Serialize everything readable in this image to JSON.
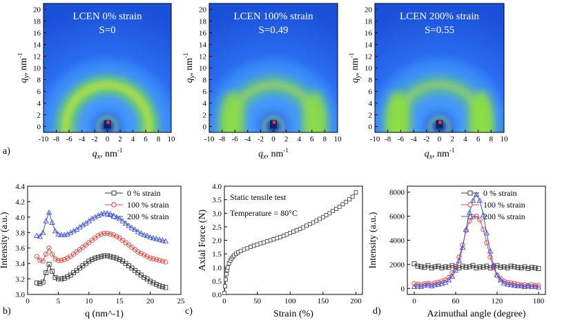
{
  "colors": {
    "black": "#333333",
    "red": "#e8413a",
    "blue": "#3a50e0"
  },
  "chart_data": [
    {
      "type": "heatmap",
      "panel": "a)",
      "title": "LCEN 0% strain",
      "annotation": "S=0",
      "xlabel": "q_x, nm^-1",
      "ylabel": "q_y, nm^-1",
      "xlim": [
        -10,
        10
      ],
      "ylim": [
        -1,
        21
      ],
      "xticks": [
        "-10",
        "-8",
        "-6",
        "-4",
        "-2",
        "0",
        "2",
        "4",
        "6",
        "8",
        "10"
      ],
      "yticks": [
        "0",
        "2",
        "4",
        "6",
        "8",
        "10",
        "12",
        "14",
        "16",
        "18",
        "20"
      ],
      "ring_radius": 6.5,
      "anisotropy": 0
    },
    {
      "type": "heatmap",
      "panel": "a)",
      "title": "LCEN 100% strain",
      "annotation": "S=0.49",
      "xlabel": "q_x, nm^-1",
      "ylabel": "q_y, nm^-1",
      "xlim": [
        -10,
        10
      ],
      "ylim": [
        -1,
        21
      ],
      "xticks": [
        "-10",
        "-8",
        "-6",
        "-4",
        "-2",
        "0",
        "2",
        "4",
        "6",
        "8",
        "10"
      ],
      "yticks": [
        "0",
        "2",
        "4",
        "6",
        "8",
        "10",
        "12",
        "14",
        "16",
        "18",
        "20"
      ],
      "ring_radius": 6.5,
      "anisotropy": 0.49
    },
    {
      "type": "heatmap",
      "panel": "a)",
      "title": "LCEN 200% strain",
      "annotation": "S=0.55",
      "xlabel": "q_x, nm^-1",
      "ylabel": "q_y, nm^-1",
      "xlim": [
        -10,
        10
      ],
      "ylim": [
        -1,
        21
      ],
      "xticks": [
        "-10",
        "-8",
        "-6",
        "-4",
        "-2",
        "0",
        "2",
        "4",
        "6",
        "8",
        "10"
      ],
      "yticks": [
        "0",
        "2",
        "4",
        "6",
        "8",
        "10",
        "12",
        "14",
        "16",
        "18",
        "20"
      ],
      "ring_radius": 6.5,
      "anisotropy": 0.55
    },
    {
      "type": "line",
      "panel": "b)",
      "xlabel": "q (nm^-1)",
      "ylabel": "Intensity (a.u.)",
      "xlim": [
        0,
        25
      ],
      "ylim": [
        3.0,
        4.4
      ],
      "xticks": [
        "0",
        "5",
        "10",
        "15",
        "20",
        "25"
      ],
      "yticks": [
        "3.0",
        "3.2",
        "3.4",
        "3.6",
        "3.8",
        "4.0",
        "4.2",
        "4.4"
      ],
      "x": [
        1.5,
        2.0,
        2.5,
        3.0,
        3.5,
        4.0,
        4.5,
        5.0,
        5.5,
        6.0,
        6.5,
        7.0,
        7.5,
        8.0,
        8.5,
        9.0,
        9.5,
        10.0,
        10.5,
        11.0,
        11.5,
        12.0,
        12.5,
        13.0,
        13.5,
        14.0,
        14.5,
        15.0,
        15.5,
        16.0,
        16.5,
        17.0,
        17.5,
        18.0,
        18.5,
        19.0,
        19.5,
        20.0,
        20.5,
        21.0,
        21.5,
        22.0,
        22.5
      ],
      "series": [
        {
          "name": "0 % strain",
          "color": "black",
          "values": [
            3.15,
            3.14,
            3.16,
            3.28,
            3.39,
            3.3,
            3.22,
            3.2,
            3.2,
            3.21,
            3.23,
            3.25,
            3.28,
            3.31,
            3.34,
            3.37,
            3.4,
            3.43,
            3.45,
            3.47,
            3.48,
            3.49,
            3.5,
            3.5,
            3.49,
            3.48,
            3.47,
            3.45,
            3.43,
            3.4,
            3.37,
            3.34,
            3.31,
            3.28,
            3.25,
            3.22,
            3.2,
            3.17,
            3.15,
            3.13,
            3.11,
            3.1,
            3.09
          ]
        },
        {
          "name": "100 % strain",
          "color": "red",
          "values": [
            3.49,
            3.44,
            3.43,
            3.52,
            3.6,
            3.52,
            3.46,
            3.44,
            3.44,
            3.45,
            3.47,
            3.49,
            3.52,
            3.55,
            3.58,
            3.61,
            3.64,
            3.67,
            3.7,
            3.73,
            3.76,
            3.78,
            3.79,
            3.79,
            3.78,
            3.77,
            3.75,
            3.73,
            3.7,
            3.67,
            3.64,
            3.61,
            3.58,
            3.55,
            3.53,
            3.51,
            3.49,
            3.47,
            3.46,
            3.45,
            3.44,
            3.43,
            3.42
          ]
        },
        {
          "name": "200 % strain",
          "color": "blue",
          "values": [
            3.76,
            3.75,
            3.8,
            3.95,
            4.06,
            3.93,
            3.82,
            3.78,
            3.77,
            3.77,
            3.78,
            3.8,
            3.82,
            3.84,
            3.87,
            3.9,
            3.92,
            3.95,
            3.98,
            4.0,
            4.02,
            4.04,
            4.05,
            4.05,
            4.04,
            4.02,
            4.0,
            3.98,
            3.95,
            3.92,
            3.89,
            3.86,
            3.84,
            3.81,
            3.79,
            3.77,
            3.76,
            3.74,
            3.73,
            3.72,
            3.71,
            3.7,
            3.69
          ]
        }
      ],
      "legend": "top-right"
    },
    {
      "type": "line",
      "panel": "c)",
      "xlabel": "Strain (%)",
      "ylabel": "Axial Force (N)",
      "xlim": [
        0,
        210
      ],
      "ylim": [
        0,
        4.0
      ],
      "xticks": [
        "0",
        "50",
        "100",
        "150",
        "200"
      ],
      "yticks": [
        "0.0",
        "0.5",
        "1.0",
        "1.5",
        "2.0",
        "2.5",
        "3.0",
        "3.5",
        "4.0"
      ],
      "annotations": [
        "Static tensile test",
        "Temperature = 80°C"
      ],
      "series": [
        {
          "name": "Static tensile test",
          "color": "black",
          "x": [
            0,
            1,
            2,
            3,
            4,
            5,
            7,
            9,
            11,
            13,
            15,
            18,
            21,
            25,
            30,
            35,
            40,
            45,
            50,
            55,
            60,
            65,
            70,
            75,
            80,
            85,
            90,
            95,
            100,
            105,
            110,
            115,
            120,
            125,
            130,
            135,
            140,
            145,
            150,
            155,
            160,
            165,
            170,
            175,
            180,
            185,
            190,
            195,
            200
          ],
          "values": [
            0.05,
            0.3,
            0.55,
            0.75,
            0.9,
            1.0,
            1.15,
            1.25,
            1.33,
            1.39,
            1.44,
            1.5,
            1.55,
            1.6,
            1.66,
            1.71,
            1.76,
            1.8,
            1.84,
            1.88,
            1.92,
            1.96,
            2.0,
            2.04,
            2.08,
            2.12,
            2.17,
            2.22,
            2.27,
            2.32,
            2.37,
            2.42,
            2.48,
            2.54,
            2.6,
            2.66,
            2.72,
            2.79,
            2.86,
            2.93,
            3.0,
            3.08,
            3.16,
            3.24,
            3.33,
            3.42,
            3.51,
            3.61,
            3.77
          ]
        }
      ]
    },
    {
      "type": "scatter",
      "panel": "d)",
      "xlabel": "Azimuthal angle (degree)",
      "ylabel": "Intensity (a.u.)",
      "xlim": [
        -10,
        190
      ],
      "ylim": [
        -500,
        8500
      ],
      "xticks": [
        "0",
        "60",
        "120",
        "180"
      ],
      "yticks": [
        "0",
        "2000",
        "4000",
        "6000",
        "8000"
      ],
      "x": [
        0,
        5,
        10,
        15,
        20,
        25,
        30,
        35,
        40,
        45,
        50,
        55,
        60,
        65,
        70,
        75,
        80,
        85,
        90,
        95,
        100,
        105,
        110,
        115,
        120,
        125,
        130,
        135,
        140,
        145,
        150,
        155,
        160,
        165,
        170,
        175,
        180
      ],
      "series": [
        {
          "name": "0 % strain",
          "color": "black",
          "values": [
            2050,
            1850,
            1800,
            1750,
            1900,
            1700,
            1800,
            1850,
            1700,
            1800,
            1750,
            1900,
            1800,
            1700,
            1850,
            1750,
            1800,
            1900,
            1700,
            1800,
            1750,
            1850,
            1700,
            1800,
            1900,
            1750,
            1800,
            1700,
            1850,
            1800,
            1750,
            1700,
            1800,
            1650,
            1750,
            1700,
            1650
          ]
        },
        {
          "name": "100 % strain",
          "color": "red",
          "values": [
            400,
            350,
            300,
            380,
            420,
            350,
            450,
            500,
            600,
            700,
            900,
            1300,
            1800,
            2600,
            3600,
            4800,
            5600,
            5950,
            6000,
            5700,
            4900,
            3800,
            2600,
            1700,
            1100,
            800,
            600,
            500,
            450,
            400,
            350,
            300,
            300,
            250,
            300,
            250,
            250
          ]
        },
        {
          "name": "200 % strain",
          "color": "blue",
          "values": [
            150,
            200,
            150,
            250,
            300,
            200,
            300,
            350,
            400,
            500,
            700,
            1000,
            1500,
            2300,
            3400,
            4900,
            6300,
            7300,
            7800,
            7300,
            6100,
            4600,
            3100,
            1900,
            1100,
            700,
            450,
            350,
            300,
            250,
            200,
            200,
            150,
            200,
            150,
            150,
            100
          ]
        }
      ],
      "legend": "top-right"
    }
  ],
  "labels": {
    "panel_a": "a)",
    "panel_b": "b)",
    "panel_c": "c)",
    "panel_d": "d)",
    "qx_axis": "q",
    "qx_sub": "x",
    "qx_unit": ", nm",
    "qx_exp": "-1",
    "qy_axis": "q",
    "qy_sub": "y",
    "qy_unit": ", nm",
    "qy_exp": "-1"
  }
}
